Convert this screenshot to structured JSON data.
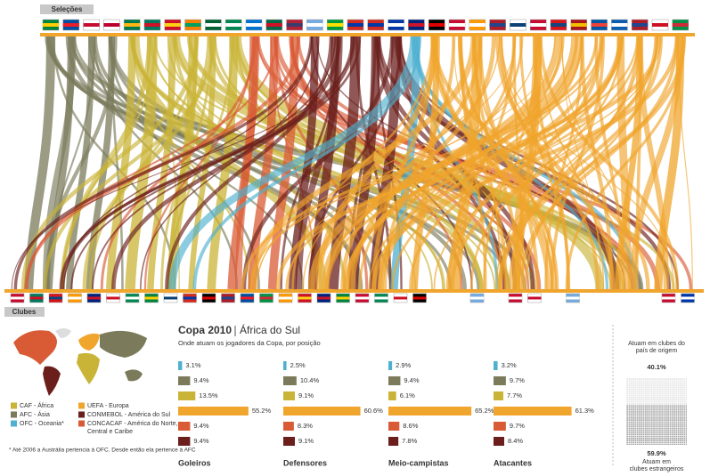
{
  "header": {
    "top_label": "Seleções",
    "bottom_label": "Clubes"
  },
  "legend": [
    {
      "name": "CAF - África",
      "color": "#c9b437"
    },
    {
      "name": "AFC - Ásia",
      "color": "#7b7b5c"
    },
    {
      "name": "OFC - Oceania*",
      "color": "#4fb0d0"
    },
    {
      "name": "UEFA - Europa",
      "color": "#f0a52c"
    },
    {
      "name": "CONMEBOL - América do Sul",
      "color": "#6a1f1c"
    },
    {
      "name": "CONCACAF - América do Norte, Central e Caribe",
      "color": "#d95b36"
    }
  ],
  "footnote": "* Até 2006 a Austrália pertencia à OFC. Desde então ela pertence à AFC",
  "title": "Copa 2010",
  "title_suffix": "África do Sul",
  "subtitle": "Onde atuam os jogadores da Copa, por posição",
  "chart_data": [
    {
      "type": "bar",
      "title": "Goleiros",
      "categories": [
        null,
        null,
        null,
        null,
        null,
        null
      ],
      "values": [
        3.1,
        9.4,
        13.5,
        55.2,
        9.4,
        9.4
      ],
      "value_labels": [
        "3.1%",
        "9.4%",
        "13.5%",
        "55.2%",
        "9.4%",
        "9.4%"
      ],
      "colors": [
        "#4fb0d0",
        "#7b7b5c",
        "#c9b437",
        "#f0a52c",
        "#d95b36",
        "#6a1f1c"
      ],
      "xlim": [
        0,
        70
      ]
    },
    {
      "type": "bar",
      "title": "Defensores",
      "categories": [
        null,
        null,
        null,
        null,
        null,
        null
      ],
      "values": [
        2.5,
        10.4,
        9.1,
        60.6,
        8.3,
        9.1
      ],
      "value_labels": [
        "2.5%",
        "10.4%",
        "9.1%",
        "60.6%",
        "8.3%",
        "9.1%"
      ],
      "colors": [
        "#4fb0d0",
        "#7b7b5c",
        "#c9b437",
        "#f0a52c",
        "#d95b36",
        "#6a1f1c"
      ],
      "xlim": [
        0,
        70
      ]
    },
    {
      "type": "bar",
      "title": "Meio-campistas",
      "categories": [
        null,
        null,
        null,
        null,
        null,
        null
      ],
      "values": [
        2.9,
        9.4,
        6.1,
        65.2,
        8.6,
        7.8
      ],
      "value_labels": [
        "2.9%",
        "9.4%",
        "6.1%",
        "65.2%",
        "8.6%",
        "7.8%"
      ],
      "colors": [
        "#4fb0d0",
        "#7b7b5c",
        "#c9b437",
        "#f0a52c",
        "#d95b36",
        "#6a1f1c"
      ],
      "xlim": [
        0,
        70
      ]
    },
    {
      "type": "bar",
      "title": "Atacantes",
      "categories": [
        null,
        null,
        null,
        null,
        null,
        null
      ],
      "values": [
        3.2,
        9.7,
        7.7,
        61.3,
        9.7,
        8.4
      ],
      "value_labels": [
        "3.2%",
        "9.7%",
        "7.7%",
        "61.3%",
        "9.7%",
        "8.4%"
      ],
      "colors": [
        "#4fb0d0",
        "#7b7b5c",
        "#c9b437",
        "#f0a52c",
        "#d95b36",
        "#6a1f1c"
      ],
      "xlim": [
        0,
        70
      ]
    }
  ],
  "summary": {
    "home_label": "Atuam em clubes do país de origem",
    "home_value": 40.1,
    "home_value_label": "40.1%",
    "abroad_label": "Atuam em clubes estrangeiros",
    "abroad_value": 59.9,
    "abroad_value_label": "59.9%"
  }
}
